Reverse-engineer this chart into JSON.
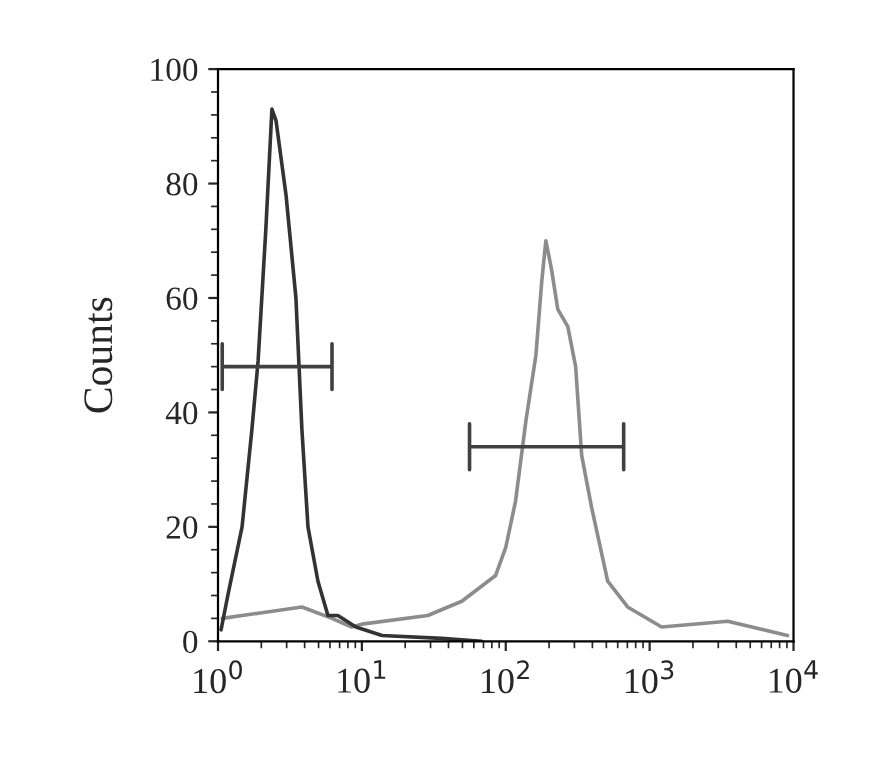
{
  "chart_data": {
    "type": "line",
    "ylabel": "Counts",
    "log": "x",
    "xlim": [
      1,
      10000
    ],
    "ylim": [
      0,
      100
    ],
    "xticks": [
      {
        "value": 1,
        "label": "10$^{0}$"
      },
      {
        "value": 10,
        "label": "10$^{1}$"
      },
      {
        "value": 100,
        "label": "10$^{2}$"
      },
      {
        "value": 1000,
        "label": "10$^{3}$"
      },
      {
        "value": 10000,
        "label": "10$^{4}$"
      }
    ],
    "yticks": [
      0,
      20,
      40,
      60,
      80,
      100
    ],
    "grid": false,
    "marker": "none",
    "series": [
      {
        "color": "#8c8c8c",
        "x": [
          1.07,
          2.02,
          3.83,
          6.2,
          8.5,
          10,
          28.7,
          49.5,
          85,
          100,
          117,
          138,
          162,
          178,
          190,
          208,
          230,
          270,
          306,
          337,
          395,
          511,
          703,
          1211,
          3483,
          9080
        ],
        "values": [
          4,
          5,
          6,
          4,
          2.5,
          3,
          4.5,
          7,
          11.5,
          16.4,
          24.5,
          38.5,
          50,
          63,
          70,
          65,
          58,
          55,
          48,
          32.5,
          23.4,
          10.5,
          6,
          2.5,
          3.5,
          1
        ]
      },
      {
        "color": "#333333",
        "x": [
          1.05,
          1.17,
          1.47,
          1.72,
          1.9,
          2.15,
          2.37,
          2.53,
          2.97,
          3.48,
          3.83,
          4.22,
          4.95,
          5.81,
          6.81,
          9.09,
          13.8,
          35.9,
          68
        ],
        "values": [
          2,
          8,
          20,
          37,
          49,
          72,
          93,
          91,
          78,
          60,
          37,
          20,
          10.5,
          4.5,
          4.5,
          2.5,
          1,
          0.5,
          0
        ]
      },
      {
        "color": "#404040",
        "x": [
          1.07,
          1.07,
          1.07,
          6.2,
          6.2,
          6.2
        ],
        "values": [
          52,
          44,
          48,
          48,
          52,
          44
        ]
      },
      {
        "color": "#404040",
        "x": [
          56,
          56,
          56,
          660,
          660,
          660
        ],
        "values": [
          38,
          30,
          34,
          34,
          38,
          30
        ]
      }
    ]
  }
}
